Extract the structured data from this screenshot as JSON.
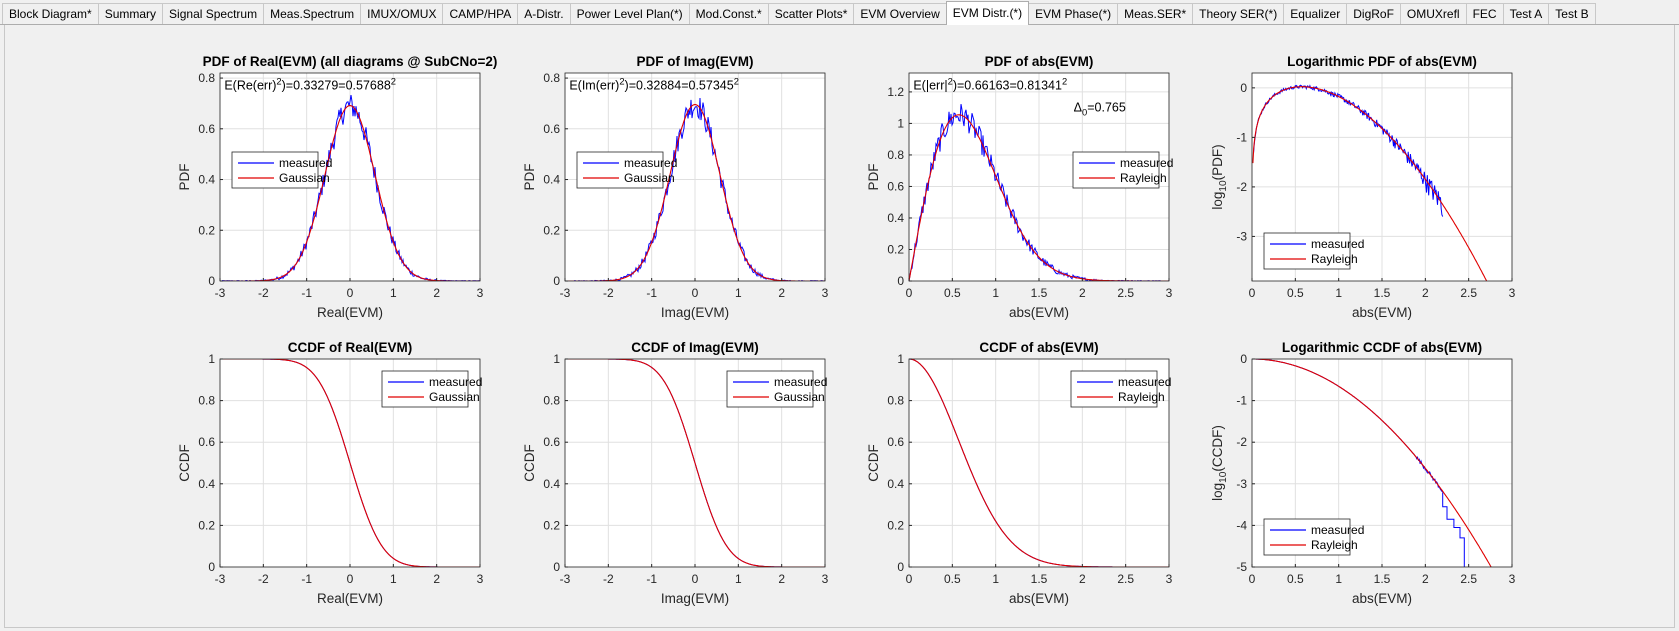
{
  "tabs": [
    {
      "label": "Block Diagram*",
      "active": false
    },
    {
      "label": "Summary",
      "active": false
    },
    {
      "label": "Signal Spectrum",
      "active": false
    },
    {
      "label": "Meas.Spectrum",
      "active": false
    },
    {
      "label": "IMUX/OMUX",
      "active": false
    },
    {
      "label": "CAMP/HPA",
      "active": false
    },
    {
      "label": "A-Distr.",
      "active": false
    },
    {
      "label": "Power Level Plan(*)",
      "active": false
    },
    {
      "label": "Mod.Const.*",
      "active": false
    },
    {
      "label": "Scatter Plots*",
      "active": false
    },
    {
      "label": "EVM Overview",
      "active": false
    },
    {
      "label": "EVM Distr.(*)",
      "active": true
    },
    {
      "label": "EVM Phase(*)",
      "active": false
    },
    {
      "label": "Meas.SER*",
      "active": false
    },
    {
      "label": "Theory SER(*)",
      "active": false
    },
    {
      "label": "Equalizer",
      "active": false
    },
    {
      "label": "DigRoF",
      "active": false
    },
    {
      "label": "OMUXrefl",
      "active": false
    },
    {
      "label": "FEC",
      "active": false
    },
    {
      "label": "Test A",
      "active": false
    },
    {
      "label": "Test B",
      "active": false
    }
  ],
  "colors": {
    "measured": "#0000ff",
    "model": "#e00000",
    "grid": "#e0e0e0",
    "axes": "#262626"
  },
  "chart_data": [
    {
      "type": "line",
      "title": "PDF of Real(EVM)  (all diagrams @ SubCNo=2)",
      "xlabel": "Real(EVM)",
      "ylabel": "PDF",
      "xlim": [
        -3,
        3
      ],
      "ylim": [
        0,
        0.82
      ],
      "xticks": [
        -3,
        -2,
        -1,
        0,
        1,
        2,
        3
      ],
      "yticks": [
        0,
        0.2,
        0.4,
        0.6,
        0.8
      ],
      "model": "gauss",
      "sigma": 0.5769,
      "annotations": [
        {
          "text": "E(Re(err)²)=0.33279=0.57688²",
          "at": [
            -2.9,
            0.77
          ]
        }
      ],
      "legend": {
        "position": "middle-left",
        "entries": [
          "measured",
          "Gaussian"
        ]
      },
      "grid": true,
      "series": [
        {
          "name": "measured",
          "style": "measured"
        },
        {
          "name": "Gaussian",
          "style": "model"
        }
      ]
    },
    {
      "type": "line",
      "title": "PDF of Imag(EVM)",
      "xlabel": "Imag(EVM)",
      "ylabel": "PDF",
      "xlim": [
        -3,
        3
      ],
      "ylim": [
        0,
        0.82
      ],
      "xticks": [
        -3,
        -2,
        -1,
        0,
        1,
        2,
        3
      ],
      "yticks": [
        0,
        0.2,
        0.4,
        0.6,
        0.8
      ],
      "model": "gauss",
      "sigma": 0.5735,
      "annotations": [
        {
          "text": "E(Im(err)²)=0.32884=0.57345²",
          "at": [
            -2.9,
            0.77
          ]
        }
      ],
      "legend": {
        "position": "middle-left",
        "entries": [
          "measured",
          "Gaussian"
        ]
      },
      "grid": true,
      "series": [
        {
          "name": "measured",
          "style": "measured"
        },
        {
          "name": "Gaussian",
          "style": "model"
        }
      ]
    },
    {
      "type": "line",
      "title": "PDF of abs(EVM)",
      "xlabel": "abs(EVM)",
      "ylabel": "PDF",
      "xlim": [
        0,
        3
      ],
      "ylim": [
        0,
        1.32
      ],
      "xticks": [
        0,
        0.5,
        1,
        1.5,
        2,
        2.5,
        3
      ],
      "yticks": [
        0,
        0.2,
        0.4,
        0.6,
        0.8,
        1,
        1.2
      ],
      "model": "rayleigh",
      "sigma": 0.575,
      "annotations": [
        {
          "text": "E(|err|²)=0.66163=0.81341²",
          "at": [
            0.05,
            1.24
          ]
        },
        {
          "text": "Δ₀=0.765",
          "at": [
            1.9,
            1.1
          ]
        }
      ],
      "legend": {
        "position": "middle-right",
        "entries": [
          "measured",
          "Rayleigh"
        ]
      },
      "grid": true,
      "series": [
        {
          "name": "measured",
          "style": "measured"
        },
        {
          "name": "Rayleigh",
          "style": "model"
        }
      ]
    },
    {
      "type": "line",
      "title": "Logarithmic PDF of abs(EVM)",
      "xlabel": "abs(EVM)",
      "ylabel": "log₁₀(PDF)",
      "xlim": [
        0,
        3
      ],
      "ylim": [
        -3.9,
        0.3
      ],
      "xticks": [
        0,
        0.5,
        1,
        1.5,
        2,
        2.5,
        3
      ],
      "yticks": [
        -3,
        -2,
        -1,
        0
      ],
      "model": "lograyleigh",
      "sigma": 0.575,
      "measured_xmax": 2.2,
      "legend": {
        "position": "bottom-left",
        "entries": [
          "measured",
          "Rayleigh"
        ]
      },
      "grid": true,
      "series": [
        {
          "name": "measured",
          "style": "measured"
        },
        {
          "name": "Rayleigh",
          "style": "model"
        }
      ]
    },
    {
      "type": "line",
      "title": "CCDF of Real(EVM)",
      "xlabel": "Real(EVM)",
      "ylabel": "CCDF",
      "xlim": [
        -3,
        3
      ],
      "ylim": [
        0,
        1
      ],
      "xticks": [
        -3,
        -2,
        -1,
        0,
        1,
        2,
        3
      ],
      "yticks": [
        0,
        0.2,
        0.4,
        0.6,
        0.8,
        1
      ],
      "model": "gaussccdf",
      "sigma": 0.5769,
      "legend": {
        "position": "top-right",
        "entries": [
          "measured",
          "Gaussian"
        ]
      },
      "grid": true,
      "series": [
        {
          "name": "measured",
          "style": "measured"
        },
        {
          "name": "Gaussian",
          "style": "model"
        }
      ]
    },
    {
      "type": "line",
      "title": "CCDF of Imag(EVM)",
      "xlabel": "Imag(EVM)",
      "ylabel": "CCDF",
      "xlim": [
        -3,
        3
      ],
      "ylim": [
        0,
        1
      ],
      "xticks": [
        -3,
        -2,
        -1,
        0,
        1,
        2,
        3
      ],
      "yticks": [
        0,
        0.2,
        0.4,
        0.6,
        0.8,
        1
      ],
      "model": "gaussccdf",
      "sigma": 0.5735,
      "legend": {
        "position": "top-right",
        "entries": [
          "measured",
          "Gaussian"
        ]
      },
      "grid": true,
      "series": [
        {
          "name": "measured",
          "style": "measured"
        },
        {
          "name": "Gaussian",
          "style": "model"
        }
      ]
    },
    {
      "type": "line",
      "title": "CCDF of abs(EVM)",
      "xlabel": "abs(EVM)",
      "ylabel": "CCDF",
      "xlim": [
        0,
        3
      ],
      "ylim": [
        0,
        1
      ],
      "xticks": [
        0,
        0.5,
        1,
        1.5,
        2,
        2.5,
        3
      ],
      "yticks": [
        0,
        0.2,
        0.4,
        0.6,
        0.8,
        1
      ],
      "model": "rayleighccdf",
      "sigma": 0.575,
      "legend": {
        "position": "top-right",
        "entries": [
          "measured",
          "Rayleigh"
        ]
      },
      "grid": true,
      "series": [
        {
          "name": "measured",
          "style": "measured"
        },
        {
          "name": "Rayleigh",
          "style": "model"
        }
      ]
    },
    {
      "type": "line",
      "title": "Logarithmic CCDF of abs(EVM)",
      "xlabel": "abs(EVM)",
      "ylabel": "log₁₀(CCDF)",
      "xlim": [
        0,
        3
      ],
      "ylim": [
        -5,
        0
      ],
      "xticks": [
        0,
        0.5,
        1,
        1.5,
        2,
        2.5,
        3
      ],
      "yticks": [
        -5,
        -4,
        -3,
        -2,
        -1,
        0
      ],
      "model": "lograyleighccdf",
      "sigma": 0.575,
      "measured_steps": [
        [
          2.2,
          -3.55
        ],
        [
          2.25,
          -3.85
        ],
        [
          2.33,
          -4.05
        ],
        [
          2.4,
          -4.3
        ],
        [
          2.45,
          -5
        ]
      ],
      "legend": {
        "position": "bottom-left",
        "entries": [
          "measured",
          "Rayleigh"
        ]
      },
      "grid": true,
      "series": [
        {
          "name": "measured",
          "style": "measured"
        },
        {
          "name": "Rayleigh",
          "style": "model"
        }
      ]
    }
  ]
}
